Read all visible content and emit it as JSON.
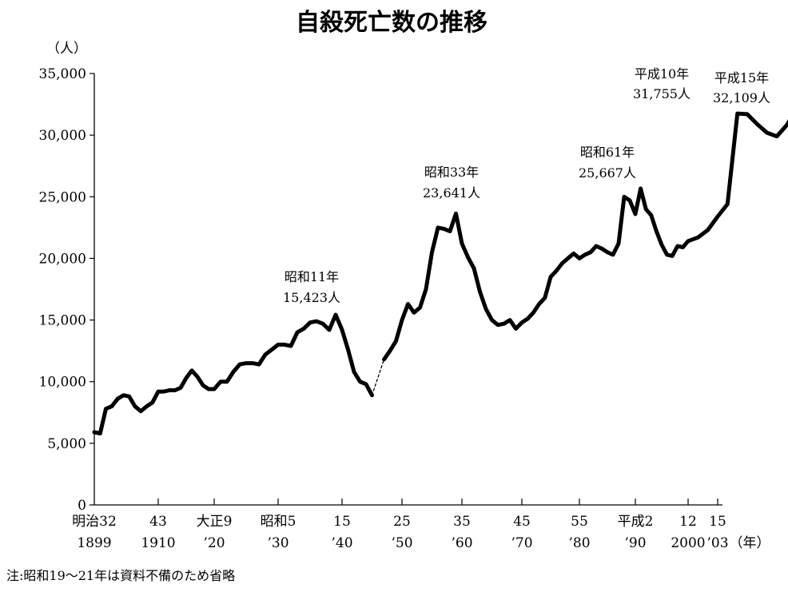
{
  "chart_data": {
    "type": "line",
    "title": "自殺死亡数の推移",
    "ylabel": "（人）",
    "xlabel": "（年）",
    "note": "注:昭和19〜21年は資料不備のため省略",
    "ylim": [
      0,
      35000
    ],
    "xlim": [
      1899,
      2003
    ],
    "grid": false,
    "y_ticks": [
      {
        "value": 0,
        "label": "0"
      },
      {
        "value": 5000,
        "label": "5,000"
      },
      {
        "value": 10000,
        "label": "10,000"
      },
      {
        "value": 15000,
        "label": "15,000"
      },
      {
        "value": 20000,
        "label": "20,000"
      },
      {
        "value": 25000,
        "label": "25,000"
      },
      {
        "value": 30000,
        "label": "30,000"
      },
      {
        "value": 35000,
        "label": "35,000"
      }
    ],
    "x_ticks": [
      {
        "year": 1899,
        "era": "明治32",
        "western": "1899"
      },
      {
        "year": 1910,
        "era": "43",
        "western": "1910"
      },
      {
        "year": 1920,
        "era": "大正9",
        "western": "’20"
      },
      {
        "year": 1930,
        "era": "昭和5",
        "western": "’30"
      },
      {
        "year": 1940,
        "era": "15",
        "western": "’40"
      },
      {
        "year": 1950,
        "era": "25",
        "western": "’50"
      },
      {
        "year": 1960,
        "era": "35",
        "western": "’60"
      },
      {
        "year": 1970,
        "era": "45",
        "western": "’70"
      },
      {
        "year": 1980,
        "era": "55",
        "western": "’80"
      },
      {
        "year": 1990,
        "era": "平成2",
        "western": "’90"
      },
      {
        "year": 2000,
        "era": "12",
        "western": "2000"
      },
      {
        "year": 2003,
        "era": "15",
        "western": "’03"
      }
    ],
    "segments": [
      {
        "style": "solid",
        "points": [
          [
            1899,
            5900
          ],
          [
            1900,
            5800
          ],
          [
            1901,
            7800
          ],
          [
            1902,
            8000
          ],
          [
            1903,
            8600
          ],
          [
            1904,
            8900
          ],
          [
            1905,
            8800
          ],
          [
            1906,
            8000
          ],
          [
            1907,
            7600
          ],
          [
            1908,
            8000
          ],
          [
            1909,
            8300
          ],
          [
            1910,
            9200
          ],
          [
            1911,
            9200
          ],
          [
            1912,
            9300
          ],
          [
            1913,
            9300
          ],
          [
            1914,
            9500
          ],
          [
            1915,
            10300
          ],
          [
            1916,
            10900
          ],
          [
            1917,
            10400
          ],
          [
            1918,
            9700
          ],
          [
            1919,
            9400
          ],
          [
            1920,
            9400
          ],
          [
            1921,
            10000
          ],
          [
            1922,
            10000
          ],
          [
            1923,
            10800
          ],
          [
            1924,
            11400
          ],
          [
            1925,
            11500
          ],
          [
            1926,
            11500
          ],
          [
            1927,
            11400
          ],
          [
            1928,
            12200
          ],
          [
            1929,
            12600
          ],
          [
            1930,
            13000
          ],
          [
            1931,
            13000
          ],
          [
            1932,
            12900
          ],
          [
            1933,
            14000
          ],
          [
            1934,
            14300
          ],
          [
            1935,
            14800
          ],
          [
            1936,
            14900
          ],
          [
            1937,
            14700
          ],
          [
            1938,
            14200
          ],
          [
            1939,
            15423
          ],
          [
            1940,
            14200
          ],
          [
            1941,
            12600
          ],
          [
            1942,
            10800
          ],
          [
            1943,
            10000
          ],
          [
            1944,
            9800
          ],
          [
            1945,
            8900
          ]
        ]
      },
      {
        "style": "dashed",
        "points": [
          [
            1945,
            8900
          ],
          [
            1947,
            11800
          ]
        ]
      },
      {
        "style": "solid",
        "points": [
          [
            1947,
            11800
          ],
          [
            1948,
            12500
          ],
          [
            1949,
            13300
          ],
          [
            1950,
            15000
          ],
          [
            1951,
            16300
          ],
          [
            1952,
            15600
          ],
          [
            1953,
            16000
          ],
          [
            1954,
            17500
          ],
          [
            1955,
            20500
          ],
          [
            1956,
            22500
          ],
          [
            1957,
            22400
          ],
          [
            1958,
            22200
          ],
          [
            1959,
            23641
          ],
          [
            1960,
            21200
          ],
          [
            1961,
            20100
          ],
          [
            1962,
            19200
          ],
          [
            1963,
            17300
          ],
          [
            1964,
            15900
          ],
          [
            1965,
            15000
          ],
          [
            1966,
            14600
          ],
          [
            1967,
            14700
          ],
          [
            1968,
            15000
          ],
          [
            1969,
            14300
          ],
          [
            1970,
            14800
          ],
          [
            1971,
            15100
          ],
          [
            1972,
            15600
          ],
          [
            1973,
            16300
          ],
          [
            1974,
            16800
          ],
          [
            1975,
            18500
          ],
          [
            1976,
            19000
          ],
          [
            1977,
            19600
          ],
          [
            1978,
            20000
          ],
          [
            1979,
            20400
          ],
          [
            1980,
            20000
          ],
          [
            1981,
            20300
          ],
          [
            1982,
            20500
          ],
          [
            1983,
            21000
          ],
          [
            1984,
            20800
          ],
          [
            1985,
            20500
          ],
          [
            1986,
            20300
          ],
          [
            1987,
            21200
          ],
          [
            1988,
            25000
          ],
          [
            1989,
            24700
          ],
          [
            1990,
            23600
          ],
          [
            1991,
            25667
          ],
          [
            1992,
            24000
          ],
          [
            1993,
            23500
          ],
          [
            1994,
            22200
          ],
          [
            1995,
            21100
          ],
          [
            1996,
            20300
          ],
          [
            1997,
            20200
          ],
          [
            1998,
            21000
          ],
          [
            1999,
            20900
          ],
          [
            2000,
            21400
          ],
          [
            2001,
            21700
          ],
          [
            2002,
            22300
          ],
          [
            2003,
            23400
          ],
          [
            2004,
            24400
          ],
          [
            2005,
            31755
          ],
          [
            2006,
            31700
          ],
          [
            2007,
            30900
          ],
          [
            2008,
            30200
          ],
          [
            2009,
            29900
          ],
          [
            2010,
            30800
          ],
          [
            2011,
            32109
          ]
        ]
      }
    ],
    "annotations": [
      {
        "line1": "昭和11年",
        "line2": "15,423人",
        "x": 1939,
        "y": 15423
      },
      {
        "line1": "昭和33年",
        "line2": "23,641人",
        "x": 1959,
        "y": 23641
      },
      {
        "line1": "昭和61年",
        "line2": "25,667人",
        "x": 1991,
        "y": 25667
      },
      {
        "line1": "平成10年",
        "line2": "31,755人",
        "x": 2005,
        "y": 31755
      },
      {
        "line1": "平成15年",
        "line2": "32,109人",
        "x": 2011,
        "y": 32109
      }
    ]
  }
}
